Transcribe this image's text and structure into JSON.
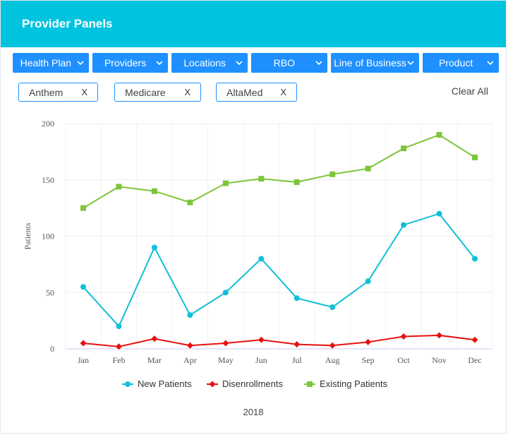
{
  "header": {
    "title": "Provider Panels"
  },
  "filters": [
    {
      "label": "Health Plan"
    },
    {
      "label": "Providers"
    },
    {
      "label": "Locations"
    },
    {
      "label": "RBO"
    },
    {
      "label": "Line of Business"
    },
    {
      "label": "Product"
    }
  ],
  "chips": [
    {
      "label": "Anthem",
      "close": "X"
    },
    {
      "label": "Medicare",
      "close": "X"
    },
    {
      "label": "AltaMed",
      "close": "X"
    }
  ],
  "clear_all": "Clear All",
  "colors": {
    "header": "#00c3dd",
    "accent": "#1e90ff",
    "new": "#11bfd8",
    "dis": "#e81010",
    "exist": "#7dc53a"
  },
  "chart_data": {
    "type": "line",
    "categories": [
      "Jan",
      "Feb",
      "Mar",
      "Apr",
      "May",
      "Jun",
      "Jul",
      "Aug",
      "Sep",
      "Oct",
      "Nov",
      "Dec"
    ],
    "series": [
      {
        "name": "New Patients",
        "marker": "circle",
        "color": "#11bfd8",
        "values": [
          55,
          20,
          90,
          30,
          50,
          80,
          45,
          37,
          60,
          110,
          120,
          80
        ]
      },
      {
        "name": "Disenrollments",
        "marker": "diamond",
        "color": "#e81010",
        "values": [
          5,
          2,
          9,
          3,
          5,
          8,
          4,
          3,
          6,
          11,
          12,
          8
        ]
      },
      {
        "name": "Existing Patients",
        "marker": "square",
        "color": "#7dc53a",
        "values": [
          125,
          144,
          140,
          130,
          147,
          151,
          148,
          155,
          160,
          178,
          190,
          170
        ]
      }
    ],
    "ylabel": "Patients",
    "xlabel": "2018",
    "ylim": [
      0,
      200
    ],
    "yticks": [
      0,
      50,
      100,
      150,
      200
    ],
    "grid": true,
    "legend": "bottom"
  }
}
